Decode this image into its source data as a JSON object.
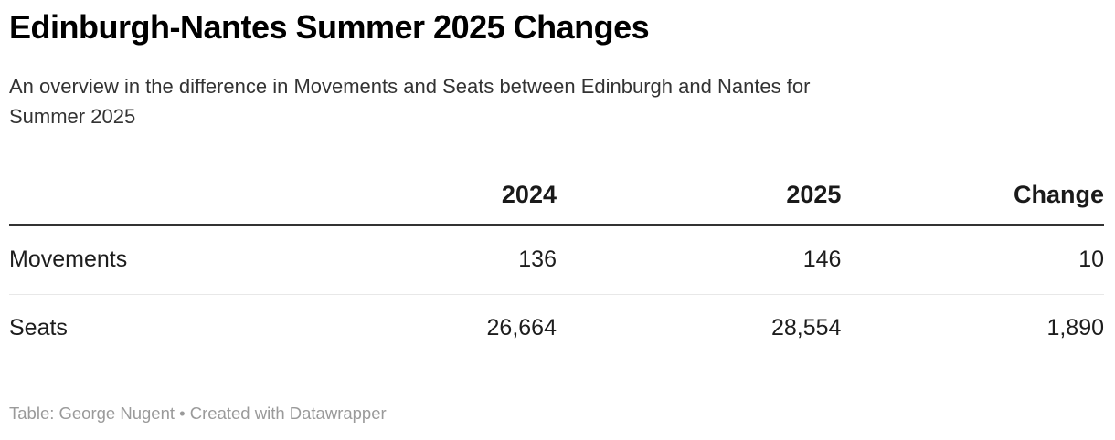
{
  "header": {
    "title": "Edinburgh-Nantes Summer 2025 Changes",
    "description": "An overview in the difference in Movements and Seats between Edinburgh and Nantes for Summer 2025"
  },
  "table": {
    "columns": {
      "label": "",
      "y2024": "2024",
      "y2025": "2025",
      "change": "Change"
    },
    "rows": [
      {
        "label": "Movements",
        "y2024": "136",
        "y2025": "146",
        "change": "10"
      },
      {
        "label": "Seats",
        "y2024": "26,664",
        "y2025": "28,554",
        "change": "1,890"
      }
    ]
  },
  "footer": {
    "byline": "Table: George Nugent • Created with Datawrapper"
  },
  "colors": {
    "background": "#ffffff",
    "title_text": "#000000",
    "description_text": "#333333",
    "body_text": "#1d1d1d",
    "header_border": "#333333",
    "row_divider": "#e8e8e8",
    "footer_text": "#9a9a9a"
  },
  "chart_data": {
    "type": "table",
    "title": "Edinburgh-Nantes Summer 2025 Changes",
    "subtitle": "An overview in the difference in Movements and Seats between Edinburgh and Nantes for Summer 2025",
    "columns": [
      "",
      "2024",
      "2025",
      "Change"
    ],
    "rows": [
      [
        "Movements",
        136,
        146,
        10
      ],
      [
        "Seats",
        26664,
        28554,
        1890
      ]
    ],
    "byline": "Table: George Nugent • Created with Datawrapper",
    "layout_hints": {
      "numeric_columns_alignment": "right",
      "label_column_alignment": "left",
      "header_rule": "thick-dark",
      "row_divider": "thin-light-gray",
      "grid": "horizontal-only"
    }
  }
}
